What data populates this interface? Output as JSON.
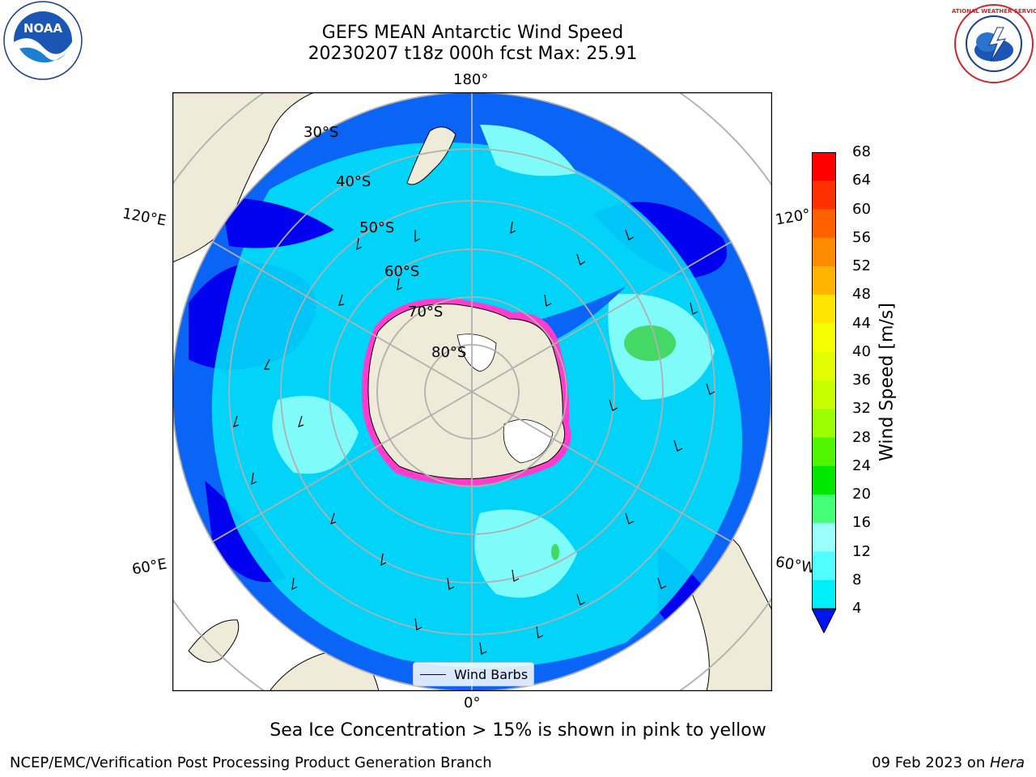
{
  "title": {
    "line1": "GEFS MEAN Antarctic Wind Speed",
    "line2": "20230207 t18z 000h fcst   Max: 25.91"
  },
  "logos": [
    {
      "name": "noaa-logo",
      "text": "NOAA"
    },
    {
      "name": "nws-logo",
      "text": "NATIONAL WEATHER SERVICE"
    }
  ],
  "map": {
    "projection": "south-polar-stereographic",
    "colors": {
      "land": "#eeebd8",
      "ocean_dark": "#0000ee",
      "ocean_mid": "#0a64f5",
      "ocean_cyan": "#00e8f8",
      "ocean_light": "#7ffcfa",
      "green": "#44d865",
      "ice": "#ff3ccc"
    },
    "longitude_labels": [
      "180°",
      "120°E",
      "120°",
      "60°E",
      "60°W",
      "0°"
    ],
    "latitude_labels": [
      "30°S",
      "40°S",
      "50°S",
      "60°S",
      "70°S",
      "80°S"
    ],
    "legend_label": "Wind Barbs"
  },
  "colorbar": {
    "label": "Wind Speed [m/s]",
    "ticks": [
      "68",
      "64",
      "60",
      "56",
      "52",
      "48",
      "44",
      "40",
      "36",
      "32",
      "28",
      "24",
      "20",
      "16",
      "12",
      "8",
      "4"
    ],
    "colors": [
      "#ff0000",
      "#ff3000",
      "#ff6000",
      "#ff8c00",
      "#ffb400",
      "#ffe600",
      "#f5ff00",
      "#e1ff00",
      "#c8ff00",
      "#9bff00",
      "#50f500",
      "#00e800",
      "#46ff78",
      "#9bfffa",
      "#50ffff",
      "#00f0fa",
      "#0a78ff",
      "#0014f0"
    ]
  },
  "footnote": "Sea Ice Concentration > 15% is shown in pink to yellow",
  "credit": "NCEP/EMC/Verification Post Processing Product Generation Branch",
  "date": {
    "text": "09 Feb 2023 on ",
    "machine": "Hera"
  }
}
